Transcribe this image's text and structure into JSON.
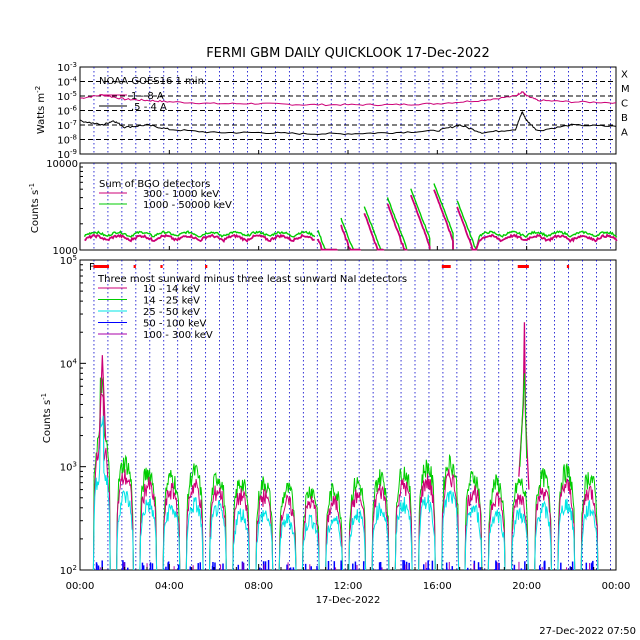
{
  "title": "FERMI GBM DAILY QUICKLOOK   17-Dec-2022",
  "footer": "27-Dec-2022 07:50",
  "x_axis": {
    "labels": [
      "00:00",
      "04:00",
      "08:00",
      "12:00",
      "16:00",
      "20:00",
      "00:00"
    ],
    "date_label": "17-Dec-2022"
  },
  "chart_data": [
    {
      "type": "line",
      "name": "goes",
      "ylabel": "Watts m",
      "ylabel_sup": "-2",
      "yscale": "log",
      "ylim": [
        1e-09,
        0.001
      ],
      "yticks": [
        {
          "b": "10",
          "e": "-3"
        },
        {
          "b": "10",
          "e": "-4"
        },
        {
          "b": "10",
          "e": "-5"
        },
        {
          "b": "10",
          "e": "-6"
        },
        {
          "b": "10",
          "e": "-7"
        },
        {
          "b": "10",
          "e": "-8"
        },
        {
          "b": "10",
          "e": "-9"
        }
      ],
      "flare_class_labels": [
        "X",
        "M",
        "C",
        "B",
        "A"
      ],
      "legend": [
        "NOAA GOES16 1 min",
        "1 - 8 A",
        ".5 - 4 A"
      ],
      "series": [
        {
          "name": "1 - 8 A",
          "color": "#cc0077",
          "x": [
            0,
            1,
            2,
            3,
            4,
            6,
            8,
            10,
            12,
            14,
            16,
            18,
            19.5,
            19.8,
            20,
            20.5,
            22,
            24
          ],
          "y": [
            7e-06,
            1.2e-05,
            6e-06,
            5e-06,
            4e-06,
            3e-06,
            3e-06,
            2.5e-06,
            2.5e-06,
            2.5e-06,
            3e-06,
            5e-06,
            1e-05,
            2e-05,
            1e-05,
            5e-06,
            4e-06,
            3.5e-06
          ]
        },
        {
          "name": ".5 - 4 A",
          "color": "#000000",
          "x": [
            0,
            1,
            1.5,
            2,
            3,
            4,
            6,
            8,
            10,
            12,
            14,
            16,
            17,
            18,
            19.5,
            19.8,
            20,
            20.5,
            22,
            24
          ],
          "y": [
            2e-07,
            1e-07,
            2e-07,
            7e-08,
            1e-07,
            5e-08,
            3e-08,
            3e-08,
            2.5e-08,
            2.5e-08,
            3e-08,
            4e-08,
            1e-07,
            3e-08,
            5e-08,
            8e-07,
            2e-07,
            4e-08,
            1e-07,
            8e-08
          ]
        }
      ]
    },
    {
      "type": "line",
      "name": "bgo",
      "ylabel": "Counts s",
      "ylabel_sup": "-1",
      "yscale": "log",
      "ylim": [
        1000,
        10000
      ],
      "yticks": [
        "10000",
        "1000"
      ],
      "legend": [
        "Sum of BGO detectors",
        "300 - 1000 keV",
        "1000 - 50000 keV"
      ],
      "series": [
        {
          "name": "300 - 1000 keV",
          "color": "#cc0077",
          "base": 1250
        },
        {
          "name": "1000 - 50000 keV",
          "color": "#00cc00",
          "base": 1400
        }
      ],
      "orbit_peaks": [
        1400,
        1400,
        1400,
        1400,
        1400,
        1400,
        1400,
        1400,
        1400,
        1500,
        1600,
        2200,
        3000,
        3800,
        4800,
        5500,
        3500,
        3000,
        1700,
        1600,
        1600,
        1600,
        1500
      ]
    },
    {
      "type": "line",
      "name": "nai",
      "ylabel": "Counts s",
      "ylabel_sup": "-1",
      "yscale": "log",
      "ylim": [
        100,
        100000
      ],
      "yticks": [
        {
          "b": "10",
          "e": "5"
        },
        {
          "b": "10",
          "e": "4"
        },
        {
          "b": "10",
          "e": "3"
        },
        {
          "b": "10",
          "e": "2"
        }
      ],
      "legend": [
        "Three most sunward minus three least sunward NaI detectors",
        "10 - 14 keV",
        "14 - 25 keV",
        "25 - 50 keV",
        "50 - 100 keV",
        "100 - 300 keV"
      ],
      "series": [
        {
          "name": "10 - 14 keV",
          "color": "#cc0077"
        },
        {
          "name": "14 - 25 keV",
          "color": "#00cc00"
        },
        {
          "name": "25 - 50 keV",
          "color": "#00e5e5"
        },
        {
          "name": "50 - 100 keV",
          "color": "#0000ff"
        },
        {
          "name": "100 - 300 keV",
          "color": "#aa00aa"
        }
      ],
      "orbit_peaks_green": [
        2000,
        1000,
        800,
        700,
        800,
        700,
        600,
        600,
        500,
        500,
        500,
        600,
        700,
        800,
        900,
        1000,
        700,
        600,
        600,
        700,
        800,
        700
      ],
      "flare_peak": {
        "x": 19.9,
        "y": 25000
      },
      "early_peak": {
        "x": 1.0,
        "y": 12000
      },
      "flags_red": [
        [
          0.6,
          1.3
        ],
        [
          2.4,
          2.5
        ],
        [
          3.6,
          3.7
        ],
        [
          5.6,
          5.7
        ],
        [
          16.2,
          16.6
        ],
        [
          19.6,
          20.1
        ],
        [
          21.8,
          21.9
        ]
      ]
    }
  ]
}
